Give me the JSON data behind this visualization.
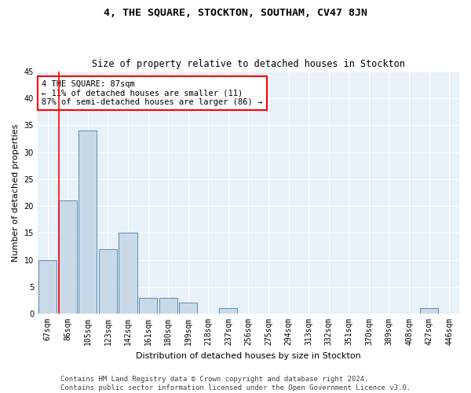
{
  "title": "4, THE SQUARE, STOCKTON, SOUTHAM, CV47 8JN",
  "subtitle": "Size of property relative to detached houses in Stockton",
  "xlabel": "Distribution of detached houses by size in Stockton",
  "ylabel": "Number of detached properties",
  "footer_line1": "Contains HM Land Registry data © Crown copyright and database right 2024.",
  "footer_line2": "Contains public sector information licensed under the Open Government Licence v3.0.",
  "categories": [
    "67sqm",
    "86sqm",
    "105sqm",
    "123sqm",
    "142sqm",
    "161sqm",
    "180sqm",
    "199sqm",
    "218sqm",
    "237sqm",
    "256sqm",
    "275sqm",
    "294sqm",
    "313sqm",
    "332sqm",
    "351sqm",
    "370sqm",
    "389sqm",
    "408sqm",
    "427sqm",
    "446sqm"
  ],
  "values": [
    10,
    21,
    34,
    12,
    15,
    3,
    3,
    2,
    0,
    1,
    0,
    0,
    0,
    0,
    0,
    0,
    0,
    0,
    0,
    1,
    0
  ],
  "bar_color": "#c9d9e8",
  "bar_edge_color": "#5b8db8",
  "ylim": [
    0,
    45
  ],
  "yticks": [
    0,
    5,
    10,
    15,
    20,
    25,
    30,
    35,
    40,
    45
  ],
  "property_label": "4 THE SQUARE: 87sqm",
  "pct_smaller": 11,
  "count_smaller": 11,
  "pct_larger_semi": 87,
  "count_larger_semi": 86,
  "vline_bar_index": 1,
  "bg_color": "#e8f0f8",
  "grid_color": "#ffffff",
  "title_fontsize": 9.5,
  "subtitle_fontsize": 8.5,
  "axis_fontsize": 8,
  "tick_fontsize": 7,
  "annot_fontsize": 7.5,
  "footer_fontsize": 6.5
}
